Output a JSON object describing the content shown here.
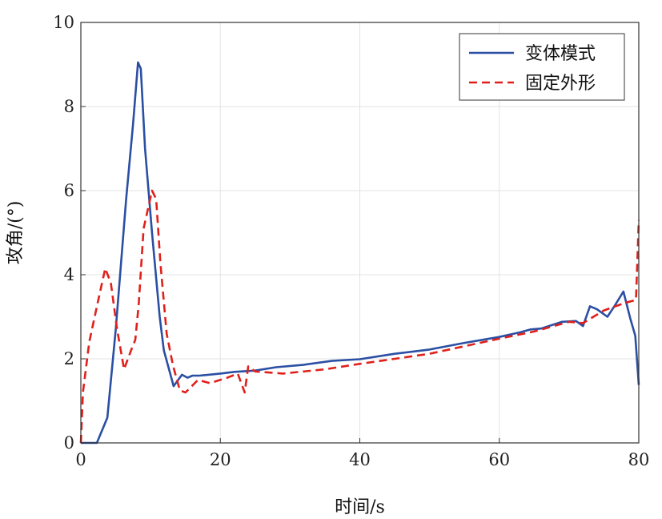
{
  "chart_data": {
    "type": "line",
    "title": "",
    "xlabel": "时间/s",
    "ylabel": "攻角/(°)",
    "xlim": [
      0,
      80
    ],
    "ylim": [
      0,
      10
    ],
    "xticks": [
      0,
      20,
      40,
      60,
      80
    ],
    "yticks": [
      0,
      2,
      4,
      6,
      8,
      10
    ],
    "grid": true,
    "legend_position": "top-right",
    "series": [
      {
        "name": "变体模式",
        "color": "#2a4fa3",
        "dash": "solid",
        "points": [
          [
            0,
            0
          ],
          [
            2.3,
            0
          ],
          [
            3.8,
            0.6
          ],
          [
            5,
            2.7
          ],
          [
            6.5,
            5.8
          ],
          [
            7.5,
            7.6
          ],
          [
            8.2,
            9.05
          ],
          [
            8.6,
            8.9
          ],
          [
            9.2,
            7.0
          ],
          [
            10.2,
            5.0
          ],
          [
            11.3,
            3.0
          ],
          [
            11.9,
            2.2
          ],
          [
            13.3,
            1.35
          ],
          [
            14.5,
            1.62
          ],
          [
            15.3,
            1.55
          ],
          [
            16,
            1.6
          ],
          [
            17,
            1.6
          ],
          [
            20,
            1.65
          ],
          [
            22,
            1.69
          ],
          [
            25,
            1.72
          ],
          [
            28,
            1.8
          ],
          [
            32,
            1.86
          ],
          [
            36,
            1.95
          ],
          [
            40,
            1.99
          ],
          [
            45,
            2.12
          ],
          [
            50,
            2.22
          ],
          [
            55,
            2.38
          ],
          [
            60,
            2.52
          ],
          [
            63,
            2.63
          ],
          [
            64.5,
            2.7
          ],
          [
            66,
            2.72
          ],
          [
            69,
            2.88
          ],
          [
            71,
            2.9
          ],
          [
            72,
            2.78
          ],
          [
            73,
            3.25
          ],
          [
            74,
            3.18
          ],
          [
            75.5,
            3.0
          ],
          [
            76.5,
            3.25
          ],
          [
            77.8,
            3.6
          ],
          [
            78.8,
            2.95
          ],
          [
            79.5,
            2.55
          ],
          [
            80,
            1.38
          ]
        ]
      },
      {
        "name": "固定外形",
        "color": "#e0201b",
        "dash": "dashed",
        "points": [
          [
            0,
            0
          ],
          [
            0.3,
            1.2
          ],
          [
            1.2,
            2.4
          ],
          [
            2.5,
            3.4
          ],
          [
            3.5,
            4.15
          ],
          [
            4.3,
            3.8
          ],
          [
            5.2,
            2.7
          ],
          [
            6.2,
            1.75
          ],
          [
            7.2,
            2.2
          ],
          [
            7.8,
            2.45
          ],
          [
            8.3,
            3.3
          ],
          [
            9,
            5.1
          ],
          [
            10.2,
            6.0
          ],
          [
            10.8,
            5.8
          ],
          [
            11.4,
            4.3
          ],
          [
            12.3,
            2.6
          ],
          [
            13.2,
            1.85
          ],
          [
            14.2,
            1.25
          ],
          [
            15,
            1.2
          ],
          [
            16.8,
            1.5
          ],
          [
            18.5,
            1.42
          ],
          [
            21,
            1.55
          ],
          [
            22.5,
            1.65
          ],
          [
            23.5,
            1.2
          ],
          [
            24,
            1.82
          ],
          [
            25,
            1.7
          ],
          [
            29,
            1.65
          ],
          [
            35,
            1.75
          ],
          [
            40,
            1.88
          ],
          [
            45,
            2.0
          ],
          [
            50,
            2.12
          ],
          [
            55,
            2.3
          ],
          [
            60,
            2.48
          ],
          [
            65,
            2.65
          ],
          [
            70,
            2.88
          ],
          [
            72,
            2.85
          ],
          [
            75,
            3.15
          ],
          [
            78,
            3.33
          ],
          [
            79.6,
            3.4
          ],
          [
            80,
            5.3
          ]
        ]
      }
    ]
  }
}
